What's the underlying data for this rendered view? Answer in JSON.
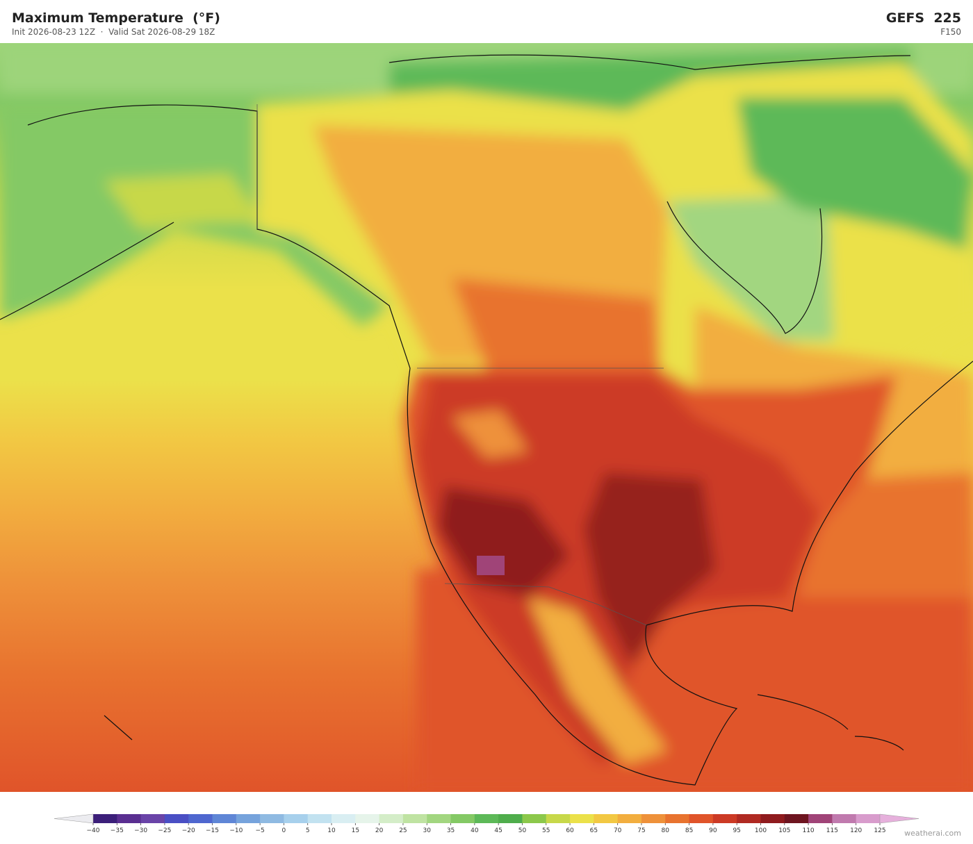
{
  "header": {
    "title": "Maximum Temperature  (°F)",
    "subtitle": "Init 2026-08-23 12Z  ·  Valid Sat 2026-08-29 18Z",
    "model": "GEFS  225",
    "forecast_hour": "F150"
  },
  "colorbar": {
    "ticks": [
      {
        "value": -40,
        "label": "−40"
      },
      {
        "value": -35,
        "label": "−35"
      },
      {
        "value": -30,
        "label": "−30"
      },
      {
        "value": -25,
        "label": "−25"
      },
      {
        "value": -20,
        "label": "−20"
      },
      {
        "value": -15,
        "label": "−15"
      },
      {
        "value": -10,
        "label": "−10"
      },
      {
        "value": -5,
        "label": "−5"
      },
      0,
      5,
      10,
      15,
      20,
      25,
      30,
      35,
      40,
      45,
      50,
      55,
      60,
      65,
      70,
      75,
      80,
      85,
      90,
      95,
      100,
      105,
      110,
      115,
      120,
      125
    ],
    "colors": [
      "#3c1f7a",
      "#5a2f91",
      "#6a44a8",
      "#4a4fc4",
      "#4f67cf",
      "#5f86d6",
      "#76a3dc",
      "#8fbae2",
      "#a7d0ec",
      "#c2e2f0",
      "#d9eef2",
      "#e6f4ea",
      "#d4edc8",
      "#bfe3a2",
      "#a2d680",
      "#84c965",
      "#5db958",
      "#4fad4c",
      "#8cc84b",
      "#c7d84a",
      "#ebe14a",
      "#f2c843",
      "#f2ae3f",
      "#ee913a",
      "#e8732f",
      "#e0542a",
      "#cc3a25",
      "#b02a22",
      "#8f1b1e",
      "#6e1520",
      "#a04478",
      "#c07aae",
      "#d89ccc"
    ],
    "under_color": "#ececf0",
    "over_color": "#e6b0dc"
  },
  "footer": {
    "credit": "weatherai.com"
  }
}
